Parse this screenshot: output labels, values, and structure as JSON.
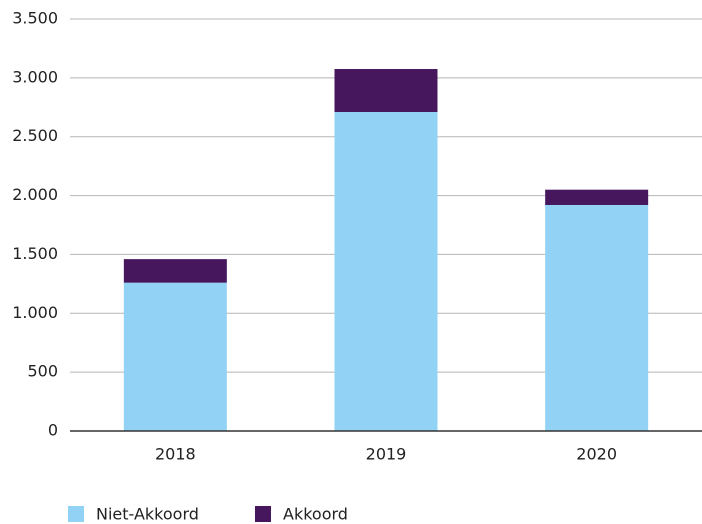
{
  "chart_data": {
    "type": "stacked_bar",
    "categories": [
      "2018",
      "2019",
      "2020"
    ],
    "series": [
      {
        "name": "Niet-Akkoord",
        "color": "#92d3f5",
        "values": [
          1260,
          2710,
          1920
        ]
      },
      {
        "name": "Akkoord",
        "color": "#47175e",
        "values": [
          200,
          365,
          130
        ]
      }
    ],
    "ylim": [
      0,
      3500
    ],
    "yticks": [
      0,
      500,
      {
        "value": 1000,
        "label": "1.000"
      },
      {
        "value": 1500,
        "label": "1.500"
      },
      {
        "value": 2000,
        "label": "2.000"
      },
      {
        "value": 2500,
        "label": "2.500"
      },
      {
        "value": 3000,
        "label": "3.000"
      },
      {
        "value": 3500,
        "label": "3.500"
      }
    ],
    "grid": true,
    "legend": "bottom"
  }
}
